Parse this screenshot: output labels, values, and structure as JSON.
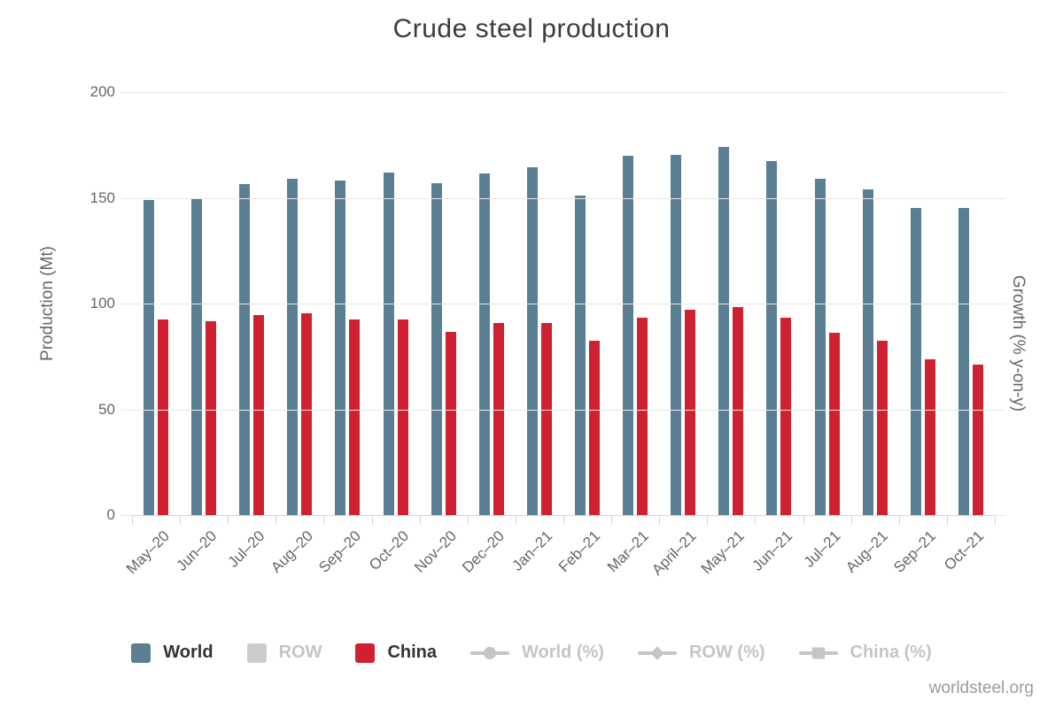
{
  "title": "Crude steel production",
  "watermark": "worldsteel.org",
  "colors": {
    "world_bar": "#5b7f92",
    "china_bar": "#d02131",
    "disabled": "#c5c5c5",
    "row_swatch": "#cccccc",
    "gridline": "#e6e6e6",
    "x_axis_line": "#ccd6eb",
    "enabled_label_text": "#333333",
    "axis_text": "#666666"
  },
  "y_axis": {
    "title": "Production (Mt)",
    "ticks": [
      0,
      50,
      100,
      150,
      200
    ]
  },
  "y2_axis": {
    "title": "Growth (% y-on-y)"
  },
  "legend": [
    {
      "label": "World",
      "marker": "bar",
      "color": "#5b7f92",
      "enabled": true
    },
    {
      "label": "ROW",
      "marker": "bar",
      "color": "#cccccc",
      "enabled": false
    },
    {
      "label": "China",
      "marker": "bar",
      "color": "#d02131",
      "enabled": true
    },
    {
      "label": "World (%)",
      "marker": "line-circle",
      "color": "#c5c5c5",
      "enabled": false
    },
    {
      "label": "ROW (%)",
      "marker": "line-diamond",
      "color": "#c5c5c5",
      "enabled": false
    },
    {
      "label": "China (%)",
      "marker": "line-square",
      "color": "#c5c5c5",
      "enabled": false
    }
  ],
  "chart_data": {
    "type": "bar",
    "title": "Crude steel production",
    "categories": [
      "May–20",
      "Jun–20",
      "Jul–20",
      "Aug–20",
      "Sep–20",
      "Oct–20",
      "Nov–20",
      "Dec–20",
      "Jan–21",
      "Feb–21",
      "Mar–21",
      "April–21",
      "May–21",
      "Jun–21",
      "Jul–21",
      "Aug–21",
      "Sep–21",
      "Oct–21"
    ],
    "series": [
      {
        "name": "World",
        "color": "#5b7f92",
        "values": [
          149,
          150,
          156.5,
          159,
          158,
          162,
          157,
          161.5,
          164.5,
          151,
          170,
          170.5,
          174,
          167.5,
          159,
          154,
          145,
          145
        ]
      },
      {
        "name": "China",
        "color": "#d02131",
        "values": [
          92.5,
          91.5,
          94.5,
          95.5,
          92.5,
          92.5,
          86.5,
          91,
          91,
          82.5,
          93.5,
          97,
          98.5,
          93.5,
          86,
          82.5,
          73.5,
          71
        ]
      }
    ],
    "hidden_series": [
      "ROW",
      "World (%)",
      "ROW (%)",
      "China (%)"
    ],
    "xlabel": "",
    "ylabel": "Production (Mt)",
    "y2label": "Growth (% y-on-y)",
    "ylim": [
      0,
      200
    ],
    "yticks": [
      0,
      50,
      100,
      150,
      200
    ],
    "grid": true,
    "legend_position": "bottom"
  }
}
